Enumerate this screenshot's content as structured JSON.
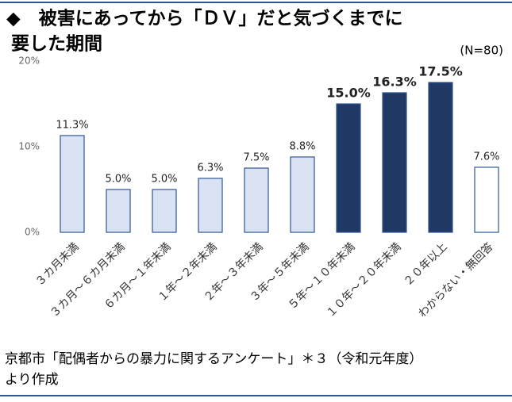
{
  "chart_data": {
    "type": "bar",
    "title": [
      "◆　被害にあってから「ＤＶ」だと気づくまでに",
      "要した期間"
    ],
    "annotation": "(N=80)",
    "categories": [
      "３カ月未満",
      "３カ月～６カ月未満",
      "６カ月～１年未満",
      "１年～２年未満",
      "２年～３年未満",
      "３年～５年未満",
      "５年～１０年未満",
      "１０年～２０年未満",
      "２０年以上",
      "わからない・無回答"
    ],
    "values": [
      11.3,
      5.0,
      5.0,
      6.3,
      7.5,
      8.8,
      15.0,
      16.3,
      17.5,
      7.6
    ],
    "value_labels": [
      "11.3%",
      "5.0%",
      "5.0%",
      "6.3%",
      "7.5%",
      "8.8%",
      "15.0%",
      "16.3%",
      "17.5%",
      "7.6%"
    ],
    "colors": [
      "#dae3f3",
      "#dae3f3",
      "#dae3f3",
      "#dae3f3",
      "#dae3f3",
      "#dae3f3",
      "#203864",
      "#203864",
      "#203864",
      "#ffffff"
    ],
    "ylim": [
      0,
      20
    ],
    "yticks": [
      {
        "value": 0,
        "label": "0%"
      },
      {
        "value": 10,
        "label": "10%"
      },
      {
        "value": 20,
        "label": "20%"
      }
    ],
    "grid": false,
    "source": [
      "京都市「配偶者からの暴力に関するアンケート」＊３（令和元年度）",
      "より作成"
    ]
  }
}
